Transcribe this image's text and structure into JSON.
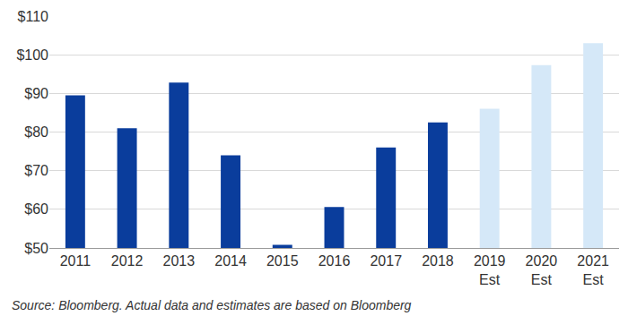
{
  "chart_data": {
    "type": "bar",
    "categories": [
      "2011",
      "2012",
      "2013",
      "2014",
      "2015",
      "2016",
      "2017",
      "2018",
      "2019 Est",
      "2020 Est",
      "2021 Est"
    ],
    "values": [
      89.5,
      81,
      92.8,
      74,
      50.8,
      60.6,
      76,
      82.5,
      86,
      97.3,
      103
    ],
    "colors": [
      "#0a3d9c",
      "#0a3d9c",
      "#0a3d9c",
      "#0a3d9c",
      "#0a3d9c",
      "#0a3d9c",
      "#0a3d9c",
      "#0a3d9c",
      "#d5e8f8",
      "#d5e8f8",
      "#d5e8f8"
    ],
    "ylim": [
      50,
      110
    ],
    "yticks": [
      {
        "value": 50,
        "label": "$50"
      },
      {
        "value": 60,
        "label": "$60"
      },
      {
        "value": 70,
        "label": "$70"
      },
      {
        "value": 80,
        "label": "$80"
      },
      {
        "value": 90,
        "label": "$90"
      },
      {
        "value": 100,
        "label": "$100"
      },
      {
        "value": 110,
        "label": "$110"
      }
    ],
    "grid": true,
    "annotations": [
      "Source: Bloomberg. Actual data and estimates are based on Bloomberg"
    ]
  }
}
